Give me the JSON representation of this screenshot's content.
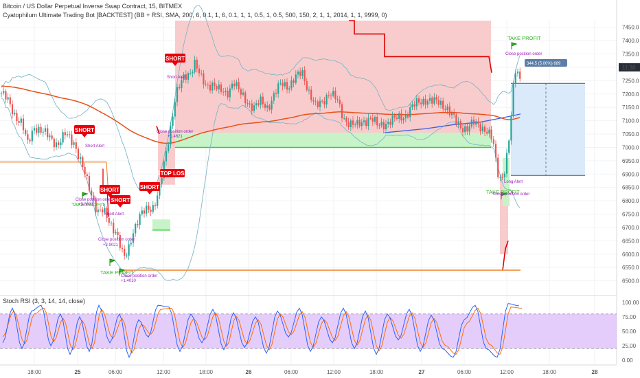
{
  "header": {
    "symbol_title": "Bitcoin / US Dollar Perpetual Inverse Swap Contract, 15, BITMEX",
    "study_title": "Cyatophilum Ultimate Trading Bot [BACKTEST] (BB + RSI, SMA, 200, 6, 0.1, 1, 6, 0.1, 1, 1, 0.5, 1, 0.5, 500, 150, 2, 1, 1, 2014, 1, 1, 9999, 0)",
    "rsi_title": "Stoch RSI (3, 3, 14, 14, close)"
  },
  "price_axis": {
    "ticks": [
      "7450.0",
      "7400.0",
      "7350.0",
      "7300.0",
      "7250.0",
      "7200.0",
      "7150.0",
      "7100.0",
      "7050.0",
      "7000.0",
      "6950.0",
      "6900.0",
      "6850.0",
      "6800.0",
      "6750.0",
      "6700.0",
      "6650.0",
      "6600.0",
      "6550.0",
      "6500.0"
    ],
    "last_price_label": "11:38"
  },
  "rsi_axis": {
    "ticks": [
      "100.00",
      "75.00",
      "50.00",
      "25.00",
      "0.00"
    ]
  },
  "time_axis": {
    "ticks": [
      "18:00",
      "25",
      "06:00",
      "12:00",
      "18:00",
      "26",
      "06:00",
      "12:00",
      "18:00",
      "27",
      "06:00",
      "12:00",
      "18:00",
      "28"
    ]
  },
  "colors": {
    "candle_up": "#26a69a",
    "candle_down": "#ef5350",
    "stop_zone": "#f7c6c6",
    "profit_zone": "#c8f3c8",
    "sma": "#ff6600",
    "bands": "#7fb6c8",
    "rsi_k": "#2962ff",
    "rsi_d": "#ff6d00",
    "rsi_band": "#e1c4fa",
    "short_badge": "#e8000b",
    "take_profit": "#2fb01f",
    "annotation": "#a020c0"
  },
  "annotations": {
    "short_label": "SHORT",
    "stop_loss_label": "STOP LOSS",
    "take_profit_label": "TAKE PROFIT",
    "close_label": "Close position order",
    "short_alert": "Short Alert",
    "long_alert": "Long Alert",
    "position_box_label": "344.5 (5.00%) 689",
    "profit_values": [
      "+1.4621",
      "+2.9021",
      "+1.4010",
      "+3.8621"
    ]
  },
  "chart_data": {
    "type": "candlestick",
    "title": "Bitcoin / US Dollar Perpetual Inverse Swap Contract, 15, BITMEX",
    "y_range": [
      6450,
      7475
    ],
    "time_ticks": [
      "18:00",
      "25",
      "06:00",
      "12:00",
      "18:00",
      "26",
      "06:00",
      "12:00",
      "18:00",
      "27",
      "06:00",
      "12:00",
      "18:00",
      "28"
    ],
    "price_path": [
      [
        0,
        7210
      ],
      [
        10,
        7180
      ],
      [
        22,
        7120
      ],
      [
        32,
        7090
      ],
      [
        40,
        7010
      ],
      [
        50,
        7080
      ],
      [
        60,
        7060
      ],
      [
        72,
        7040
      ],
      [
        84,
        7010
      ],
      [
        96,
        7050
      ],
      [
        108,
        7020
      ],
      [
        118,
        6940
      ],
      [
        126,
        6880
      ],
      [
        134,
        6820
      ],
      [
        142,
        6760
      ],
      [
        150,
        6760
      ],
      [
        160,
        6720
      ],
      [
        170,
        6680
      ],
      [
        180,
        6580
      ],
      [
        186,
        6610
      ],
      [
        194,
        6690
      ],
      [
        204,
        6740
      ],
      [
        214,
        6770
      ],
      [
        224,
        6780
      ],
      [
        232,
        6840
      ],
      [
        240,
        6950
      ],
      [
        248,
        7070
      ],
      [
        256,
        7200
      ],
      [
        262,
        7230
      ],
      [
        268,
        7260
      ],
      [
        276,
        7280
      ],
      [
        284,
        7320
      ],
      [
        292,
        7260
      ],
      [
        300,
        7230
      ],
      [
        310,
        7240
      ],
      [
        320,
        7210
      ],
      [
        330,
        7200
      ],
      [
        340,
        7250
      ],
      [
        350,
        7200
      ],
      [
        360,
        7170
      ],
      [
        370,
        7150
      ],
      [
        380,
        7170
      ],
      [
        390,
        7150
      ],
      [
        400,
        7200
      ],
      [
        410,
        7240
      ],
      [
        420,
        7230
      ],
      [
        430,
        7260
      ],
      [
        440,
        7280
      ],
      [
        450,
        7210
      ],
      [
        460,
        7150
      ],
      [
        470,
        7170
      ],
      [
        480,
        7210
      ],
      [
        490,
        7180
      ],
      [
        500,
        7110
      ],
      [
        510,
        7090
      ],
      [
        520,
        7080
      ],
      [
        530,
        7100
      ],
      [
        540,
        7110
      ],
      [
        550,
        7080
      ],
      [
        560,
        7090
      ],
      [
        570,
        7100
      ],
      [
        580,
        7110
      ],
      [
        590,
        7120
      ],
      [
        600,
        7150
      ],
      [
        610,
        7170
      ],
      [
        620,
        7180
      ],
      [
        630,
        7170
      ],
      [
        640,
        7170
      ],
      [
        650,
        7150
      ],
      [
        660,
        7110
      ],
      [
        670,
        7080
      ],
      [
        680,
        7070
      ],
      [
        690,
        7090
      ],
      [
        700,
        7080
      ],
      [
        710,
        7060
      ],
      [
        718,
        7020
      ],
      [
        724,
        6910
      ],
      [
        730,
        6880
      ],
      [
        736,
        6930
      ],
      [
        742,
        7040
      ],
      [
        748,
        7230
      ],
      [
        752,
        7310
      ],
      [
        756,
        7260
      ],
      [
        760,
        7245
      ]
    ],
    "stoch_rsi": {
      "k_path": [
        [
          4,
          30
        ],
        [
          18,
          90
        ],
        [
          32,
          20
        ],
        [
          46,
          85
        ],
        [
          60,
          95
        ],
        [
          74,
          25
        ],
        [
          88,
          80
        ],
        [
          102,
          10
        ],
        [
          116,
          75
        ],
        [
          130,
          15
        ],
        [
          144,
          95
        ],
        [
          160,
          30
        ],
        [
          174,
          80
        ],
        [
          188,
          5
        ],
        [
          202,
          70
        ],
        [
          216,
          40
        ],
        [
          230,
          95
        ],
        [
          246,
          92
        ],
        [
          262,
          15
        ],
        [
          278,
          80
        ],
        [
          294,
          30
        ],
        [
          310,
          88
        ],
        [
          326,
          18
        ],
        [
          340,
          82
        ],
        [
          356,
          22
        ],
        [
          372,
          75
        ],
        [
          388,
          12
        ],
        [
          404,
          85
        ],
        [
          420,
          40
        ],
        [
          436,
          90
        ],
        [
          452,
          15
        ],
        [
          468,
          75
        ],
        [
          484,
          30
        ],
        [
          500,
          90
        ],
        [
          516,
          20
        ],
        [
          532,
          85
        ],
        [
          548,
          10
        ],
        [
          564,
          80
        ],
        [
          580,
          35
        ],
        [
          596,
          88
        ],
        [
          612,
          15
        ],
        [
          628,
          78
        ],
        [
          644,
          20
        ],
        [
          660,
          5
        ],
        [
          676,
          70
        ],
        [
          692,
          95
        ],
        [
          708,
          20
        ],
        [
          724,
          5
        ],
        [
          740,
          98
        ],
        [
          756,
          94
        ]
      ],
      "d_path": [
        [
          4,
          40
        ],
        [
          20,
          85
        ],
        [
          36,
          28
        ],
        [
          50,
          80
        ],
        [
          64,
          90
        ],
        [
          78,
          32
        ],
        [
          92,
          72
        ],
        [
          106,
          18
        ],
        [
          120,
          68
        ],
        [
          134,
          20
        ],
        [
          148,
          88
        ],
        [
          164,
          38
        ],
        [
          178,
          72
        ],
        [
          192,
          12
        ],
        [
          206,
          62
        ],
        [
          220,
          45
        ],
        [
          234,
          88
        ],
        [
          250,
          90
        ],
        [
          266,
          22
        ],
        [
          282,
          72
        ],
        [
          298,
          35
        ],
        [
          314,
          82
        ],
        [
          330,
          24
        ],
        [
          344,
          76
        ],
        [
          360,
          28
        ],
        [
          376,
          70
        ],
        [
          392,
          18
        ],
        [
          408,
          80
        ],
        [
          424,
          44
        ],
        [
          440,
          84
        ],
        [
          456,
          22
        ],
        [
          472,
          70
        ],
        [
          488,
          34
        ],
        [
          504,
          84
        ],
        [
          520,
          26
        ],
        [
          536,
          78
        ],
        [
          552,
          16
        ],
        [
          568,
          74
        ],
        [
          584,
          38
        ],
        [
          600,
          82
        ],
        [
          616,
          22
        ],
        [
          632,
          72
        ],
        [
          648,
          26
        ],
        [
          664,
          10
        ],
        [
          680,
          64
        ],
        [
          696,
          90
        ],
        [
          712,
          28
        ],
        [
          728,
          10
        ],
        [
          744,
          92
        ],
        [
          760,
          90
        ]
      ],
      "band": [
        20,
        80
      ]
    }
  }
}
